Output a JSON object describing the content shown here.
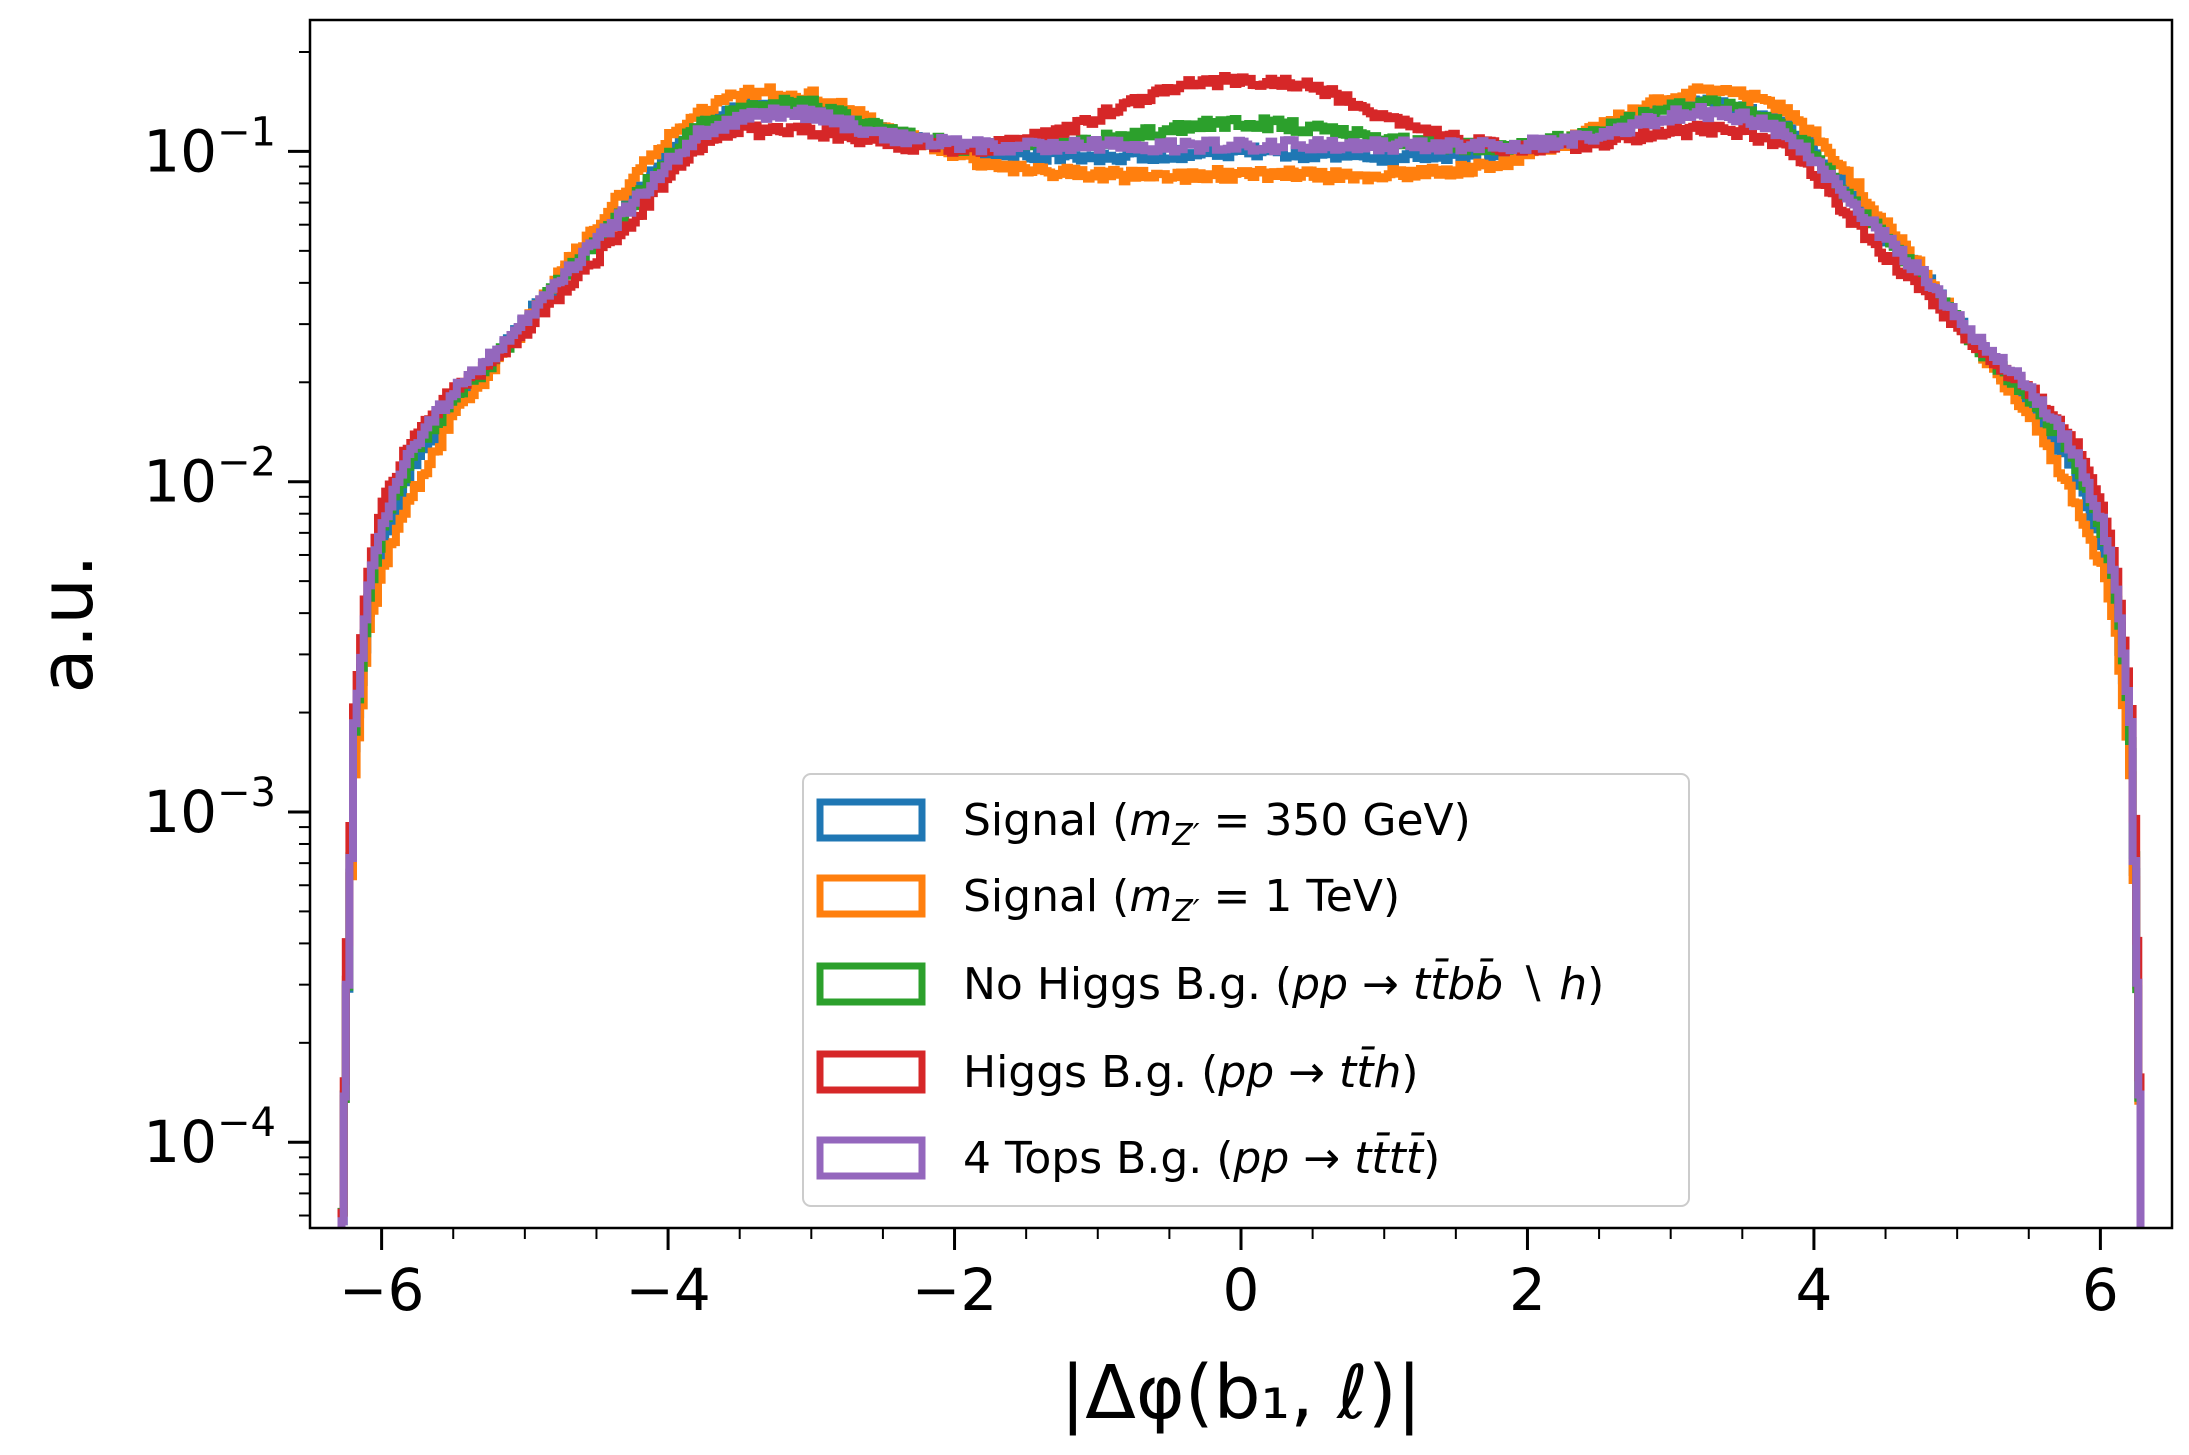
{
  "chart_data": {
    "type": "line",
    "title": "",
    "xlabel": "|Δφ(b₁, ℓ)|",
    "ylabel": "a.u.",
    "xlim": [
      -6.5,
      6.5
    ],
    "ylim": [
      5.5e-05,
      0.25
    ],
    "yscale": "log",
    "grid": false,
    "legend_position": "lower-center",
    "x_ticks": [
      {
        "value": -6,
        "label": "−6"
      },
      {
        "value": -4,
        "label": "−4"
      },
      {
        "value": -2,
        "label": "−2"
      },
      {
        "value": 0,
        "label": "0"
      },
      {
        "value": 2,
        "label": "2"
      },
      {
        "value": 4,
        "label": "4"
      },
      {
        "value": 6,
        "label": "6"
      }
    ],
    "y_ticks": [
      {
        "value": 0.1,
        "base": "10",
        "exp": "−1"
      },
      {
        "value": 0.01,
        "base": "10",
        "exp": "−2"
      },
      {
        "value": 0.001,
        "base": "10",
        "exp": "−3"
      },
      {
        "value": 0.0001,
        "base": "10",
        "exp": "−4"
      }
    ],
    "x": [
      -6.28,
      -6.25,
      -6.2,
      -6.1,
      -6.0,
      -5.8,
      -5.5,
      -5.2,
      -5.0,
      -4.8,
      -4.5,
      -4.2,
      -4.0,
      -3.8,
      -3.5,
      -3.2,
      -3.0,
      -2.8,
      -2.5,
      -2.2,
      -2.0,
      -1.8,
      -1.5,
      -1.2,
      -1.0,
      -0.8,
      -0.5,
      -0.3,
      0.0,
      0.3,
      0.5,
      0.8,
      1.0,
      1.2,
      1.5,
      1.8,
      2.0,
      2.2,
      2.5,
      2.8,
      3.0,
      3.2,
      3.5,
      3.8,
      4.0,
      4.2,
      4.5,
      4.8,
      5.0,
      5.2,
      5.5,
      5.8,
      6.0,
      6.1,
      6.2,
      6.25,
      6.28
    ],
    "series": [
      {
        "name": "Signal (m_Z′ = 350 GeV)",
        "color": "#1f77b4",
        "values": [
          6e-05,
          0.0003,
          0.0015,
          0.004,
          0.0065,
          0.011,
          0.017,
          0.024,
          0.031,
          0.04,
          0.055,
          0.078,
          0.1,
          0.12,
          0.135,
          0.14,
          0.138,
          0.128,
          0.115,
          0.106,
          0.102,
          0.1,
          0.098,
          0.097,
          0.096,
          0.097,
          0.098,
          0.099,
          0.1,
          0.099,
          0.098,
          0.097,
          0.096,
          0.097,
          0.098,
          0.1,
          0.102,
          0.106,
          0.115,
          0.128,
          0.138,
          0.14,
          0.135,
          0.12,
          0.1,
          0.078,
          0.055,
          0.04,
          0.031,
          0.024,
          0.017,
          0.011,
          0.0065,
          0.004,
          0.0015,
          0.0003,
          6e-05
        ]
      },
      {
        "name": "Signal (m_Z′ = 1 TeV)",
        "color": "#ff7f0e",
        "values": [
          6e-05,
          0.0003,
          0.0013,
          0.0035,
          0.0055,
          0.009,
          0.016,
          0.023,
          0.03,
          0.041,
          0.06,
          0.088,
          0.112,
          0.132,
          0.148,
          0.152,
          0.148,
          0.136,
          0.118,
          0.105,
          0.098,
          0.092,
          0.088,
          0.086,
          0.085,
          0.084,
          0.084,
          0.085,
          0.085,
          0.085,
          0.084,
          0.084,
          0.085,
          0.086,
          0.088,
          0.092,
          0.098,
          0.105,
          0.118,
          0.136,
          0.148,
          0.152,
          0.148,
          0.132,
          0.112,
          0.088,
          0.06,
          0.041,
          0.03,
          0.023,
          0.016,
          0.009,
          0.0055,
          0.0035,
          0.0013,
          0.0003,
          6e-05
        ]
      },
      {
        "name": "No Higgs B.g. (pp → tt̄bb̄ ∖ h)",
        "color": "#2ca02c",
        "values": [
          6e-05,
          0.0003,
          0.0017,
          0.0045,
          0.0072,
          0.012,
          0.018,
          0.024,
          0.03,
          0.039,
          0.054,
          0.075,
          0.097,
          0.118,
          0.133,
          0.14,
          0.138,
          0.128,
          0.116,
          0.108,
          0.104,
          0.103,
          0.104,
          0.106,
          0.108,
          0.112,
          0.117,
          0.12,
          0.122,
          0.12,
          0.117,
          0.112,
          0.108,
          0.106,
          0.104,
          0.103,
          0.104,
          0.108,
          0.116,
          0.128,
          0.138,
          0.14,
          0.133,
          0.118,
          0.097,
          0.075,
          0.054,
          0.039,
          0.03,
          0.024,
          0.018,
          0.012,
          0.0072,
          0.0045,
          0.0017,
          0.0003,
          6e-05
        ]
      },
      {
        "name": "Higgs B.g. (pp → tt̄h)",
        "color": "#d62728",
        "values": [
          6e-05,
          0.0004,
          0.0021,
          0.0055,
          0.0085,
          0.0135,
          0.019,
          0.024,
          0.029,
          0.036,
          0.048,
          0.066,
          0.085,
          0.104,
          0.115,
          0.116,
          0.115,
          0.112,
          0.107,
          0.103,
          0.102,
          0.103,
          0.108,
          0.117,
          0.127,
          0.14,
          0.155,
          0.162,
          0.165,
          0.162,
          0.155,
          0.14,
          0.127,
          0.117,
          0.108,
          0.103,
          0.102,
          0.103,
          0.107,
          0.112,
          0.115,
          0.116,
          0.115,
          0.104,
          0.085,
          0.066,
          0.048,
          0.036,
          0.029,
          0.024,
          0.019,
          0.0135,
          0.0085,
          0.0055,
          0.0021,
          0.0004,
          6e-05
        ]
      },
      {
        "name": "4 Tops B.g. (pp → tt̄tt̄)",
        "color": "#9467bd",
        "values": [
          6e-05,
          0.0003,
          0.0018,
          0.0048,
          0.0075,
          0.0125,
          0.019,
          0.025,
          0.031,
          0.04,
          0.054,
          0.073,
          0.093,
          0.113,
          0.127,
          0.131,
          0.129,
          0.122,
          0.112,
          0.107,
          0.105,
          0.104,
          0.104,
          0.104,
          0.104,
          0.104,
          0.104,
          0.104,
          0.104,
          0.104,
          0.104,
          0.104,
          0.104,
          0.104,
          0.104,
          0.104,
          0.105,
          0.107,
          0.112,
          0.122,
          0.129,
          0.131,
          0.127,
          0.113,
          0.093,
          0.073,
          0.054,
          0.04,
          0.031,
          0.025,
          0.019,
          0.0125,
          0.0075,
          0.0048,
          0.0018,
          0.0003,
          6e-05
        ]
      }
    ],
    "legend": [
      {
        "prefix": "Signal (",
        "math": "m",
        "sub": "Z′",
        "suffix": " = 350 GeV)"
      },
      {
        "prefix": "Signal (",
        "math": "m",
        "sub": "Z′",
        "suffix": " = 1 TeV)"
      },
      {
        "prefix": "No Higgs B.g. (",
        "math": "pp → tt̄bb̄ ∖ h",
        "sub": "",
        "suffix": ")"
      },
      {
        "prefix": "Higgs B.g. (",
        "math": "pp → tt̄h",
        "sub": "",
        "suffix": ")"
      },
      {
        "prefix": "4 Tops B.g. (",
        "math": "pp → tt̄tt̄",
        "sub": "",
        "suffix": ")"
      }
    ]
  }
}
